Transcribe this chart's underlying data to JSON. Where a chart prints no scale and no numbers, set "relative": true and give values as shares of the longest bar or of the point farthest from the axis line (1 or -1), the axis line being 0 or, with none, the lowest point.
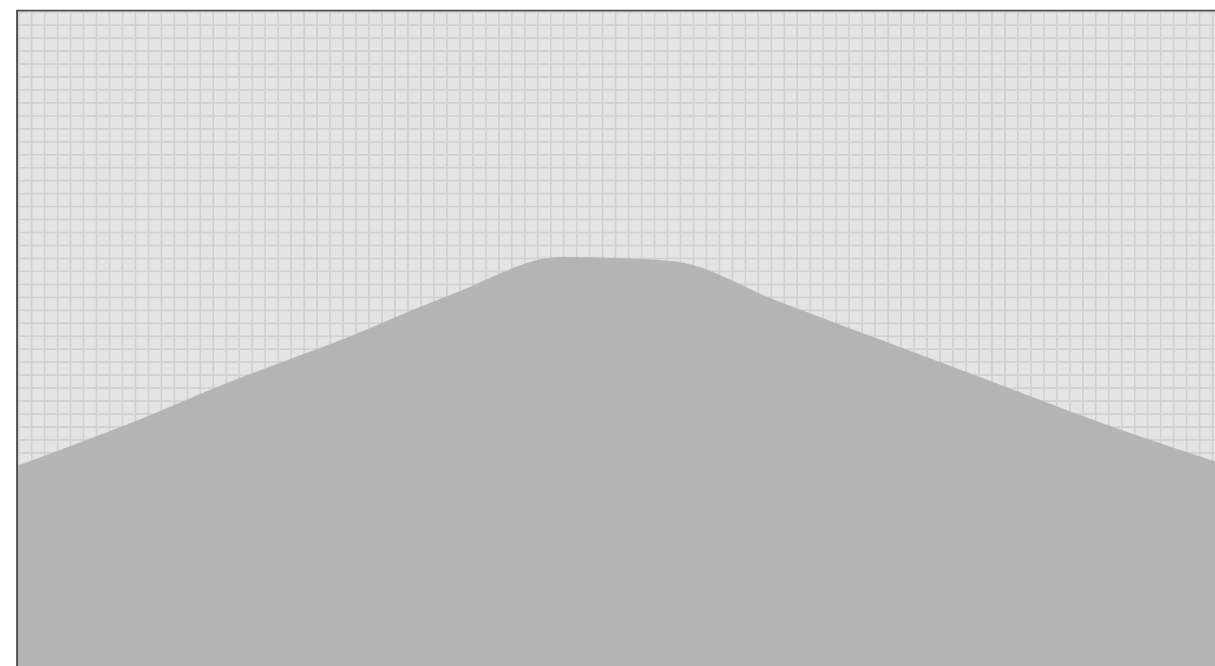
{
  "chart_data": {
    "type": "area",
    "relative": true,
    "categories": [
      null,
      null,
      null,
      null,
      null,
      null,
      null,
      null,
      null,
      null,
      null,
      null
    ],
    "series": [
      {
        "color": "#b4b4b4",
        "values": [
          0.49,
          0.59,
          0.7,
          0.8,
          0.91,
          1.0,
          0.99,
          0.89,
          0.79,
          0.69,
          0.59,
          0.5
        ]
      }
    ]
  }
}
